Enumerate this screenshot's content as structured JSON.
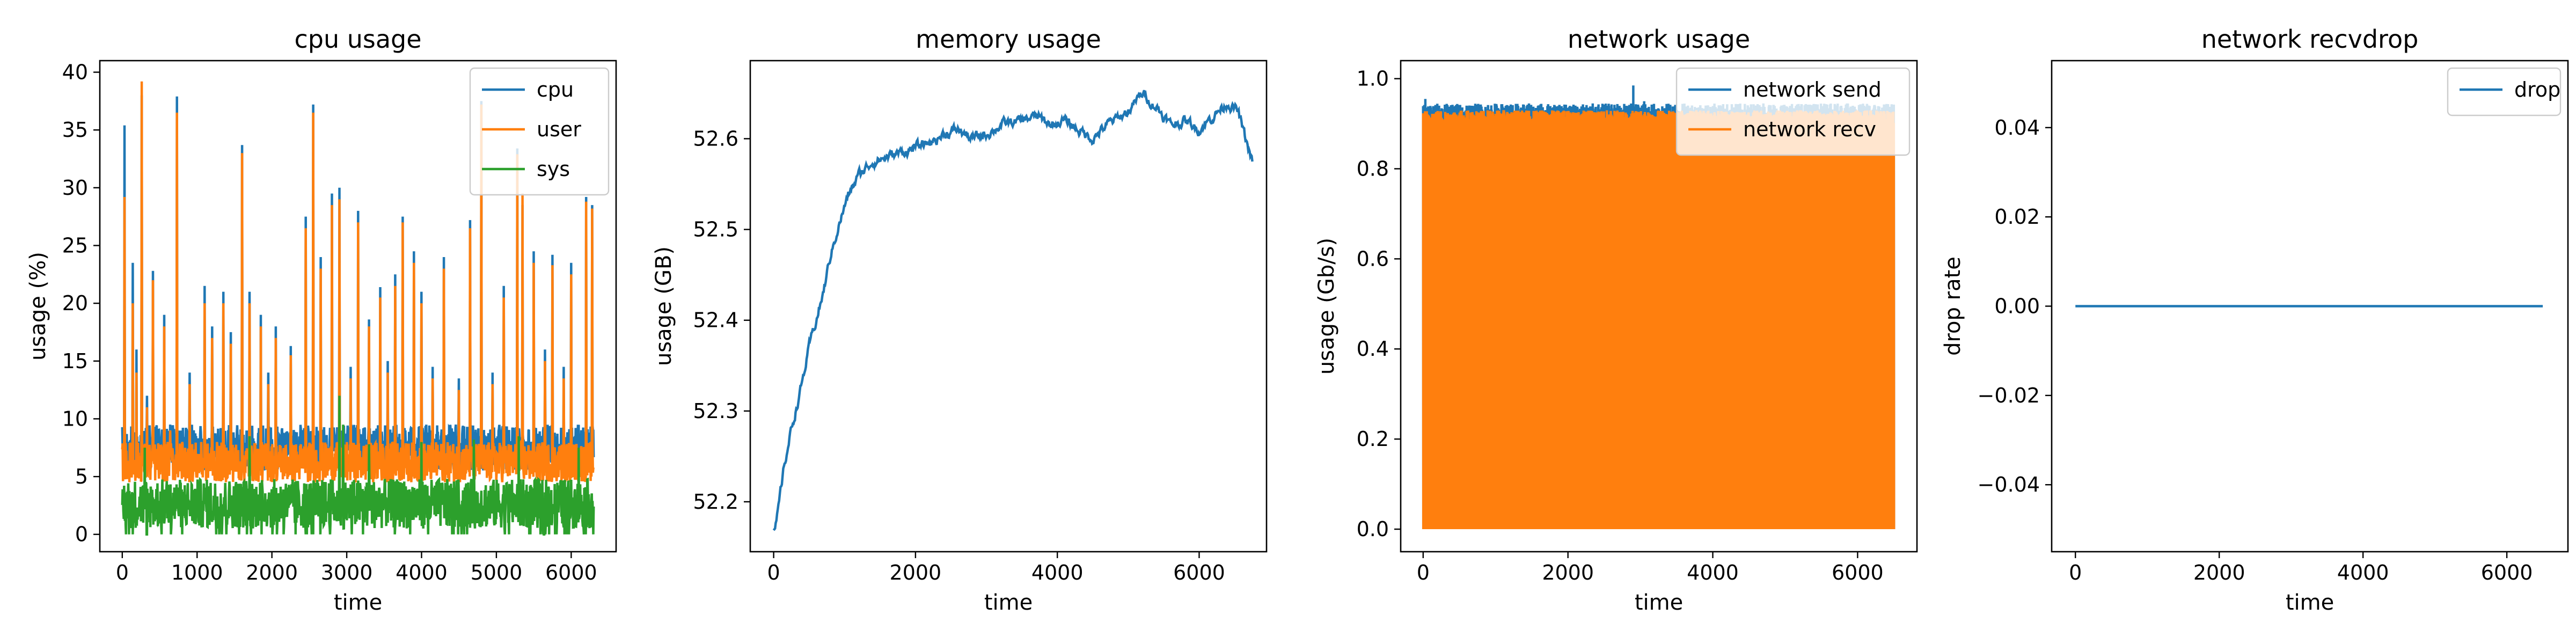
{
  "colors": {
    "blue": "#1f77b4",
    "orange": "#ff7f0e",
    "green": "#2ca02c"
  },
  "chart_data": [
    {
      "type": "line",
      "title": "cpu usage",
      "xlabel": "time",
      "ylabel": "usage (%)",
      "xlim": [
        -300,
        6600
      ],
      "ylim": [
        -1.5,
        41
      ],
      "xticks": [
        0,
        1000,
        2000,
        3000,
        4000,
        5000,
        6000
      ],
      "yticks": [
        0,
        5,
        10,
        15,
        20,
        25,
        30,
        35,
        40
      ],
      "legend": "top-right",
      "grid": false,
      "series": [
        {
          "name": "cpu",
          "color": "#1f77b4",
          "style": "spiky",
          "x_range": [
            0,
            6300
          ],
          "points": 1260,
          "baseline": [
            5.5,
            9.5
          ],
          "spikes": [
            [
              30,
              35.4
            ],
            [
              140,
              23.5
            ],
            [
              190,
              16
            ],
            [
              260,
              38
            ],
            [
              330,
              12
            ],
            [
              410,
              22.8
            ],
            [
              560,
              19
            ],
            [
              640,
              9.5
            ],
            [
              730,
              37.9
            ],
            [
              800,
              8.5
            ],
            [
              900,
              14
            ],
            [
              1100,
              21.5
            ],
            [
              1200,
              18
            ],
            [
              1350,
              21
            ],
            [
              1450,
              17.5
            ],
            [
              1600,
              33.7
            ],
            [
              1700,
              21
            ],
            [
              1850,
              19
            ],
            [
              1950,
              14
            ],
            [
              2050,
              18
            ],
            [
              2250,
              16.3
            ],
            [
              2450,
              27.5
            ],
            [
              2550,
              37.2
            ],
            [
              2650,
              24
            ],
            [
              2800,
              29.5
            ],
            [
              2900,
              30
            ],
            [
              3050,
              14.5
            ],
            [
              3150,
              28
            ],
            [
              3300,
              18.6
            ],
            [
              3450,
              21.4
            ],
            [
              3550,
              15
            ],
            [
              3650,
              22.5
            ],
            [
              3750,
              27.5
            ],
            [
              3900,
              24.5
            ],
            [
              4000,
              21
            ],
            [
              4150,
              14.5
            ],
            [
              4300,
              24
            ],
            [
              4500,
              13.5
            ],
            [
              4650,
              27.2
            ],
            [
              4800,
              37.5
            ],
            [
              4950,
              14
            ],
            [
              5100,
              21.5
            ],
            [
              5280,
              33.4
            ],
            [
              5350,
              28.5
            ],
            [
              5500,
              24.5
            ],
            [
              5650,
              16
            ],
            [
              5750,
              24.2
            ],
            [
              5900,
              14.5
            ],
            [
              6000,
              23.5
            ],
            [
              6200,
              29.2
            ],
            [
              6280,
              28.5
            ]
          ]
        },
        {
          "name": "user",
          "color": "#ff7f0e",
          "style": "spiky",
          "x_range": [
            0,
            6300
          ],
          "points": 1260,
          "baseline": [
            4.5,
            8
          ],
          "spikes": [
            [
              30,
              29.2
            ],
            [
              140,
              20
            ],
            [
              190,
              14
            ],
            [
              260,
              39.2
            ],
            [
              330,
              11
            ],
            [
              410,
              22
            ],
            [
              560,
              18
            ],
            [
              640,
              9
            ],
            [
              730,
              36.5
            ],
            [
              800,
              8
            ],
            [
              900,
              13
            ],
            [
              1100,
              20
            ],
            [
              1200,
              17
            ],
            [
              1350,
              20
            ],
            [
              1450,
              16.5
            ],
            [
              1600,
              33
            ],
            [
              1700,
              20
            ],
            [
              1850,
              18
            ],
            [
              1950,
              13
            ],
            [
              2050,
              17
            ],
            [
              2250,
              15.5
            ],
            [
              2450,
              26.5
            ],
            [
              2550,
              36.5
            ],
            [
              2650,
              23
            ],
            [
              2800,
              28.5
            ],
            [
              2900,
              29
            ],
            [
              3050,
              13.5
            ],
            [
              3150,
              27
            ],
            [
              3300,
              18
            ],
            [
              3450,
              20.5
            ],
            [
              3550,
              14
            ],
            [
              3650,
              21.5
            ],
            [
              3750,
              27
            ],
            [
              3900,
              23.5
            ],
            [
              4000,
              20
            ],
            [
              4150,
              13.5
            ],
            [
              4300,
              23
            ],
            [
              4500,
              12.5
            ],
            [
              4650,
              26.5
            ],
            [
              4800,
              37.2
            ],
            [
              4950,
              13
            ],
            [
              5100,
              20.5
            ],
            [
              5280,
              32.9
            ],
            [
              5350,
              29.5
            ],
            [
              5500,
              23.5
            ],
            [
              5650,
              15
            ],
            [
              5750,
              23.3
            ],
            [
              5900,
              13.5
            ],
            [
              6000,
              22.5
            ],
            [
              6200,
              28.8
            ],
            [
              6280,
              28.2
            ]
          ]
        },
        {
          "name": "sys",
          "color": "#2ca02c",
          "style": "noise",
          "x_range": [
            0,
            6300
          ],
          "points": 1260,
          "baseline": [
            0.5,
            4.8
          ],
          "spikes": [
            [
              2900,
              12
            ],
            [
              2950,
              9.5
            ],
            [
              1700,
              8.5
            ],
            [
              4000,
              8
            ],
            [
              4700,
              8.2
            ],
            [
              5300,
              8.5
            ],
            [
              300,
              7.5
            ],
            [
              3300,
              7.8
            ],
            [
              6100,
              7.5
            ]
          ]
        }
      ]
    },
    {
      "type": "line",
      "title": "memory usage",
      "xlabel": "time",
      "ylabel": "usage (GB)",
      "xlim": [
        -330,
        6950
      ],
      "ylim": [
        52.145,
        52.686
      ],
      "xticks": [
        0,
        2000,
        4000,
        6000
      ],
      "yticks": [
        52.2,
        52.3,
        52.4,
        52.5,
        52.6
      ],
      "grid": false,
      "series": [
        {
          "name": "memory",
          "color": "#1f77b4",
          "style": "smooth",
          "noise": 0.004,
          "points": 700,
          "key_points": [
            [
              0,
              52.165
            ],
            [
              40,
              52.175
            ],
            [
              80,
              52.2
            ],
            [
              150,
              52.24
            ],
            [
              250,
              52.28
            ],
            [
              400,
              52.33
            ],
            [
              500,
              52.37
            ],
            [
              600,
              52.4
            ],
            [
              700,
              52.43
            ],
            [
              800,
              52.47
            ],
            [
              900,
              52.5
            ],
            [
              1000,
              52.525
            ],
            [
              1100,
              52.545
            ],
            [
              1200,
              52.56
            ],
            [
              1400,
              52.575
            ],
            [
              1600,
              52.58
            ],
            [
              1800,
              52.585
            ],
            [
              2000,
              52.59
            ],
            [
              2200,
              52.595
            ],
            [
              2400,
              52.605
            ],
            [
              2600,
              52.61
            ],
            [
              2800,
              52.6
            ],
            [
              3000,
              52.605
            ],
            [
              3200,
              52.615
            ],
            [
              3500,
              52.62
            ],
            [
              3700,
              52.625
            ],
            [
              3900,
              52.615
            ],
            [
              4100,
              52.62
            ],
            [
              4300,
              52.61
            ],
            [
              4500,
              52.6
            ],
            [
              4700,
              52.615
            ],
            [
              5000,
              52.63
            ],
            [
              5200,
              52.65
            ],
            [
              5400,
              52.635
            ],
            [
              5600,
              52.615
            ],
            [
              5800,
              52.62
            ],
            [
              6000,
              52.61
            ],
            [
              6200,
              52.625
            ],
            [
              6400,
              52.64
            ],
            [
              6550,
              52.63
            ],
            [
              6650,
              52.6
            ],
            [
              6750,
              52.575
            ]
          ]
        }
      ]
    },
    {
      "type": "area",
      "title": "network usage",
      "xlabel": "time",
      "ylabel": "usage (Gb/s)",
      "xlim": [
        -310,
        6820
      ],
      "ylim": [
        -0.05,
        1.04
      ],
      "xticks": [
        0,
        2000,
        4000,
        6000
      ],
      "yticks": [
        0.0,
        0.2,
        0.4,
        0.6,
        0.8,
        1.0
      ],
      "legend": "top-right",
      "grid": false,
      "series": [
        {
          "name": "network send",
          "color": "#1f77b4",
          "style": "band",
          "x_range": [
            0,
            6500
          ],
          "points": 1300,
          "high": [
            0.905,
            0.945
          ],
          "low": [
            0.0,
            0.0
          ],
          "spikes": [
            [
              30,
              0.955
            ],
            [
              600,
              0.94
            ],
            [
              1200,
              0.935
            ],
            [
              2100,
              0.94
            ],
            [
              2900,
              0.985
            ],
            [
              3050,
              0.95
            ],
            [
              4700,
              0.945
            ],
            [
              5400,
              0.94
            ]
          ]
        },
        {
          "name": "network recv",
          "color": "#ff7f0e",
          "style": "band",
          "x_range": [
            0,
            6500
          ],
          "points": 1300,
          "high": [
            0.9,
            0.93
          ],
          "low": [
            0.0,
            0.0
          ],
          "spikes": [
            [
              6450,
              0.75
            ]
          ]
        }
      ]
    },
    {
      "type": "line",
      "title": "network recvdrop",
      "xlabel": "time",
      "ylabel": "drop rate",
      "xlim": [
        -330,
        6850
      ],
      "ylim": [
        -0.055,
        0.055
      ],
      "xticks": [
        0,
        2000,
        4000,
        6000
      ],
      "yticks": [
        -0.04,
        -0.02,
        0.0,
        0.02,
        0.04
      ],
      "legend": "top-right",
      "grid": false,
      "series": [
        {
          "name": "drop",
          "color": "#1f77b4",
          "style": "flat",
          "x": [
            0,
            6500
          ],
          "y": [
            0,
            0
          ]
        }
      ]
    }
  ]
}
